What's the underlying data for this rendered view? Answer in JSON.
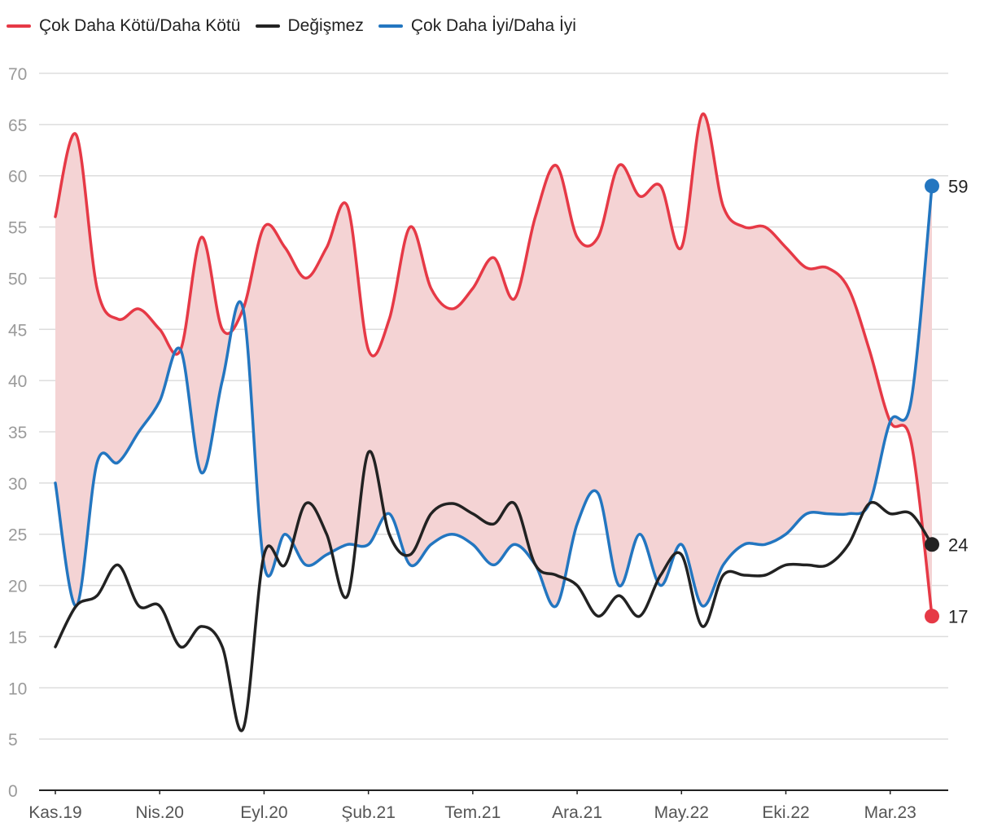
{
  "chart_data": {
    "type": "line",
    "title": "",
    "xlabel": "",
    "ylabel": "",
    "ylim": [
      0,
      70
    ],
    "y_ticks": [
      "0",
      "5",
      "10",
      "15",
      "20",
      "25",
      "30",
      "35",
      "40",
      "45",
      "50",
      "55",
      "60",
      "65",
      "70"
    ],
    "x_tick_labels": [
      "Kas.19",
      "Nis.20",
      "Eyl.20",
      "Şub.21",
      "Tem.21",
      "Ara.21",
      "May.22",
      "Eki.22",
      "Mar.23"
    ],
    "grid": true,
    "legend_position": "top-left",
    "shaded_band": "between Çok Daha Kötü/Daha Kötü and Çok Daha İyi/Daha İyi",
    "series": [
      {
        "name": "Çok Daha Kötü/Daha Kötü",
        "color": "#e63946",
        "end_label": "17",
        "values": [
          56,
          64,
          49,
          46,
          47,
          45,
          43,
          54,
          45,
          47,
          55,
          53,
          50,
          53,
          57,
          43,
          46,
          55,
          49,
          47,
          49,
          52,
          48,
          56,
          61,
          54,
          54,
          61,
          58,
          59,
          53,
          66,
          57,
          55,
          55,
          53,
          51,
          51,
          49,
          43,
          36,
          34,
          17
        ]
      },
      {
        "name": "Değişmez",
        "color": "#222222",
        "end_label": "24",
        "values": [
          14,
          18,
          19,
          22,
          18,
          18,
          14,
          16,
          14,
          6,
          23,
          22,
          28,
          25,
          19,
          33,
          25,
          23,
          27,
          28,
          27,
          26,
          28,
          22,
          21,
          20,
          17,
          19,
          17,
          21,
          23,
          16,
          21,
          21,
          21,
          22,
          22,
          22,
          24,
          28,
          27,
          27,
          24
        ]
      },
      {
        "name": "Çok Daha İyi/Daha İyi",
        "color": "#2376c0",
        "end_label": "59",
        "values": [
          30,
          18,
          32,
          32,
          35,
          38,
          43,
          31,
          40,
          47,
          22,
          25,
          22,
          23,
          24,
          24,
          27,
          22,
          24,
          25,
          24,
          22,
          24,
          22,
          18,
          26,
          29,
          20,
          25,
          20,
          24,
          18,
          22,
          24,
          24,
          25,
          27,
          27,
          27,
          28,
          36,
          38,
          59
        ]
      }
    ]
  }
}
